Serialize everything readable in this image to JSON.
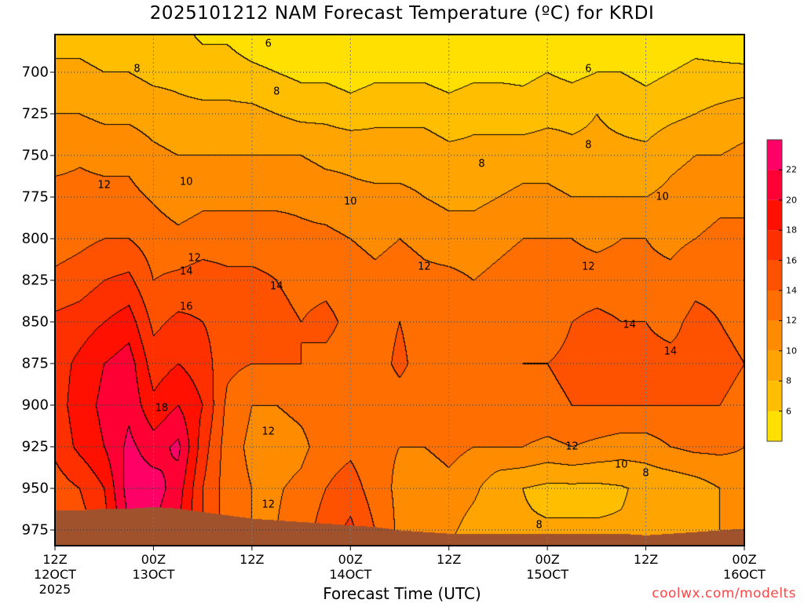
{
  "chart_data": {
    "type": "heatmap",
    "subtype": "filled-contour",
    "title": "2025101212 NAM Forecast Temperature (ºC) for KRDI",
    "xlabel": "Forecast Time (UTC)",
    "ylabel": "",
    "credit": "coolwx.com/modelts",
    "x_range_hours": [
      0,
      84
    ],
    "x_ticks": [
      {
        "hour": 0,
        "lines": [
          "12Z",
          "12OCT",
          "2025"
        ]
      },
      {
        "hour": 12,
        "lines": [
          "00Z",
          "13OCT"
        ]
      },
      {
        "hour": 24,
        "lines": [
          "12Z"
        ]
      },
      {
        "hour": 36,
        "lines": [
          "00Z",
          "14OCT"
        ]
      },
      {
        "hour": 48,
        "lines": [
          "12Z"
        ]
      },
      {
        "hour": 60,
        "lines": [
          "00Z",
          "15OCT"
        ]
      },
      {
        "hour": 72,
        "lines": [
          "12Z"
        ]
      },
      {
        "hour": 84,
        "lines": [
          "00Z",
          "16OCT"
        ]
      }
    ],
    "y_ticks": [
      "700",
      "725",
      "750",
      "775",
      "800",
      "825",
      "850",
      "875",
      "900",
      "925",
      "950",
      "975"
    ],
    "y_range_hpa": [
      677,
      984
    ],
    "levels": [
      6,
      8,
      10,
      12,
      14,
      16,
      18,
      20,
      22
    ],
    "colorbar_labels": [
      "6",
      "8",
      "10",
      "12",
      "14",
      "16",
      "18",
      "20",
      "22"
    ],
    "colors": [
      "#ffe000",
      "#ffbf00",
      "#ffa400",
      "#ff8c00",
      "#ff6e00",
      "#ff5200",
      "#ff3000",
      "#ff1000",
      "#ff0035",
      "#ff0066"
    ],
    "ground_color": "#a0522d",
    "pressure_levels": [
      700,
      725,
      750,
      775,
      800,
      825,
      850,
      875,
      900,
      925,
      950,
      975
    ],
    "hours": [
      0,
      3,
      6,
      9,
      12,
      15,
      18,
      21,
      24,
      27,
      30,
      33,
      36,
      39,
      42,
      45,
      48,
      51,
      54,
      57,
      60,
      63,
      66,
      69,
      72,
      75,
      78,
      81,
      84
    ],
    "temperature": [
      [
        8.5,
        10,
        11.5,
        12.5,
        13,
        14.5,
        16.5,
        17,
        17,
        16.5,
        15,
        15
      ],
      [
        8.5,
        10,
        11.8,
        12.5,
        13.5,
        15,
        17,
        18.5,
        19,
        18.5,
        16,
        15
      ],
      [
        8,
        9.5,
        11.5,
        12.5,
        14,
        16,
        18,
        20,
        20.5,
        20,
        18,
        17
      ],
      [
        8,
        9.5,
        11.5,
        12.5,
        14,
        16.5,
        19,
        21,
        21.5,
        22.5,
        23,
        22
      ],
      [
        7.5,
        9,
        10.5,
        11.8,
        13,
        14,
        15.5,
        17,
        18.5,
        21,
        23,
        22
      ],
      [
        7.5,
        8.5,
        10,
        11,
        12.5,
        14.5,
        16.5,
        18,
        20,
        22.5,
        21,
        20
      ],
      [
        7,
        8.5,
        10,
        11.5,
        13,
        15,
        16,
        17,
        18,
        17,
        16,
        16
      ],
      [
        7,
        8.5,
        10,
        11.5,
        13,
        14.5,
        15,
        14.5,
        13.5,
        13,
        13,
        13
      ],
      [
        6.5,
        8.5,
        10,
        11.5,
        13,
        14.5,
        14.5,
        14,
        12,
        11.5,
        12,
        12
      ],
      [
        6,
        8,
        10,
        11.5,
        13,
        14,
        14.5,
        14,
        12,
        11,
        11.8,
        12
      ],
      [
        5.5,
        7.5,
        10,
        11.5,
        12.5,
        13.5,
        14,
        14,
        12.5,
        11.5,
        12.5,
        13
      ],
      [
        5.5,
        7.5,
        9.5,
        11,
        12.5,
        13.5,
        14.5,
        13.5,
        13,
        13,
        14,
        15
      ],
      [
        5,
        7,
        9.5,
        10.5,
        12,
        13,
        13.5,
        13,
        13,
        13.5,
        15,
        16.5
      ],
      [
        5.5,
        7.5,
        9,
        10.5,
        11.5,
        12.5,
        13,
        13,
        13,
        12.5,
        13,
        14
      ],
      [
        5.5,
        7.5,
        9,
        10.5,
        12,
        13,
        14,
        14.5,
        13,
        12,
        11.5,
        11.5
      ],
      [
        5.5,
        7.5,
        9,
        10,
        11.5,
        12.5,
        13,
        13,
        12.5,
        12,
        11,
        10.5
      ],
      [
        5,
        7,
        8.5,
        9.5,
        11,
        12.5,
        12.5,
        13,
        13,
        12.5,
        11.5,
        10.5
      ],
      [
        5.5,
        7.5,
        8.5,
        9.5,
        11,
        12,
        13,
        13,
        13,
        12,
        10.5,
        9
      ],
      [
        5.5,
        7.5,
        8.5,
        10,
        11.5,
        12.5,
        13,
        13,
        13.5,
        12,
        8.5,
        8.2
      ],
      [
        5.5,
        7,
        9,
        10.5,
        12,
        13,
        13.5,
        14,
        13.5,
        12,
        8,
        8.2
      ],
      [
        6,
        7.5,
        9,
        10.5,
        12,
        12.5,
        13,
        14,
        13.5,
        11.5,
        7.5,
        8.2
      ],
      [
        5.5,
        7.5,
        8.5,
        10,
        12,
        13,
        14,
        14.5,
        14,
        12,
        7.5,
        8.2
      ],
      [
        6,
        8,
        8.5,
        10,
        11.5,
        13,
        14.5,
        14.5,
        14,
        11.5,
        7.5,
        8.2
      ],
      [
        6,
        7.5,
        8.5,
        10,
        12,
        13,
        14,
        14.5,
        14,
        11,
        7.8,
        8.2
      ],
      [
        5.5,
        7,
        8.5,
        10,
        12,
        12.5,
        14,
        14.5,
        14,
        11,
        8.5,
        8.5
      ],
      [
        6,
        7.5,
        9.5,
        10.5,
        11.5,
        12.5,
        13.5,
        14.5,
        14,
        12,
        8.5,
        8.8
      ],
      [
        6.5,
        8,
        10,
        11,
        12,
        13.5,
        14.5,
        14.5,
        14,
        12.5,
        9,
        9.2
      ],
      [
        6.5,
        8.5,
        10,
        11.5,
        12.5,
        13.5,
        14,
        14.5,
        14,
        12.5,
        10,
        10
      ],
      [
        6.5,
        9,
        10.5,
        11.5,
        12.5,
        13,
        13.5,
        14,
        13.5,
        12,
        11,
        11
      ]
    ],
    "surface_pressure": [
      963,
      963,
      962,
      962,
      961,
      962,
      964,
      966,
      968,
      969,
      970,
      971,
      972,
      973,
      975,
      976,
      977,
      977,
      977,
      977,
      977,
      977,
      977,
      977,
      978,
      977,
      976,
      975,
      974
    ],
    "contour_labels": [
      {
        "text": "6",
        "hour": 26,
        "hpa": 683
      },
      {
        "text": "8",
        "hour": 10,
        "hpa": 698
      },
      {
        "text": "8",
        "hour": 27,
        "hpa": 712
      },
      {
        "text": "6",
        "hour": 65,
        "hpa": 698
      },
      {
        "text": "8",
        "hour": 65,
        "hpa": 744
      },
      {
        "text": "8",
        "hour": 52,
        "hpa": 755
      },
      {
        "text": "12",
        "hour": 6,
        "hpa": 768
      },
      {
        "text": "10",
        "hour": 16,
        "hpa": 766
      },
      {
        "text": "10",
        "hour": 36,
        "hpa": 778
      },
      {
        "text": "10",
        "hour": 74,
        "hpa": 775
      },
      {
        "text": "12",
        "hour": 17,
        "hpa": 812
      },
      {
        "text": "12",
        "hour": 45,
        "hpa": 817
      },
      {
        "text": "12",
        "hour": 65,
        "hpa": 817
      },
      {
        "text": "14",
        "hour": 16,
        "hpa": 820
      },
      {
        "text": "14",
        "hour": 27,
        "hpa": 829
      },
      {
        "text": "16",
        "hour": 16,
        "hpa": 841
      },
      {
        "text": "14",
        "hour": 70,
        "hpa": 852
      },
      {
        "text": "14",
        "hour": 75,
        "hpa": 868
      },
      {
        "text": "18",
        "hour": 13,
        "hpa": 902
      },
      {
        "text": "12",
        "hour": 26,
        "hpa": 916
      },
      {
        "text": "12",
        "hour": 63,
        "hpa": 925
      },
      {
        "text": "10",
        "hour": 69,
        "hpa": 936
      },
      {
        "text": "8",
        "hour": 72,
        "hpa": 941
      },
      {
        "text": "12",
        "hour": 26,
        "hpa": 960
      },
      {
        "text": "8",
        "hour": 59,
        "hpa": 972
      }
    ]
  }
}
